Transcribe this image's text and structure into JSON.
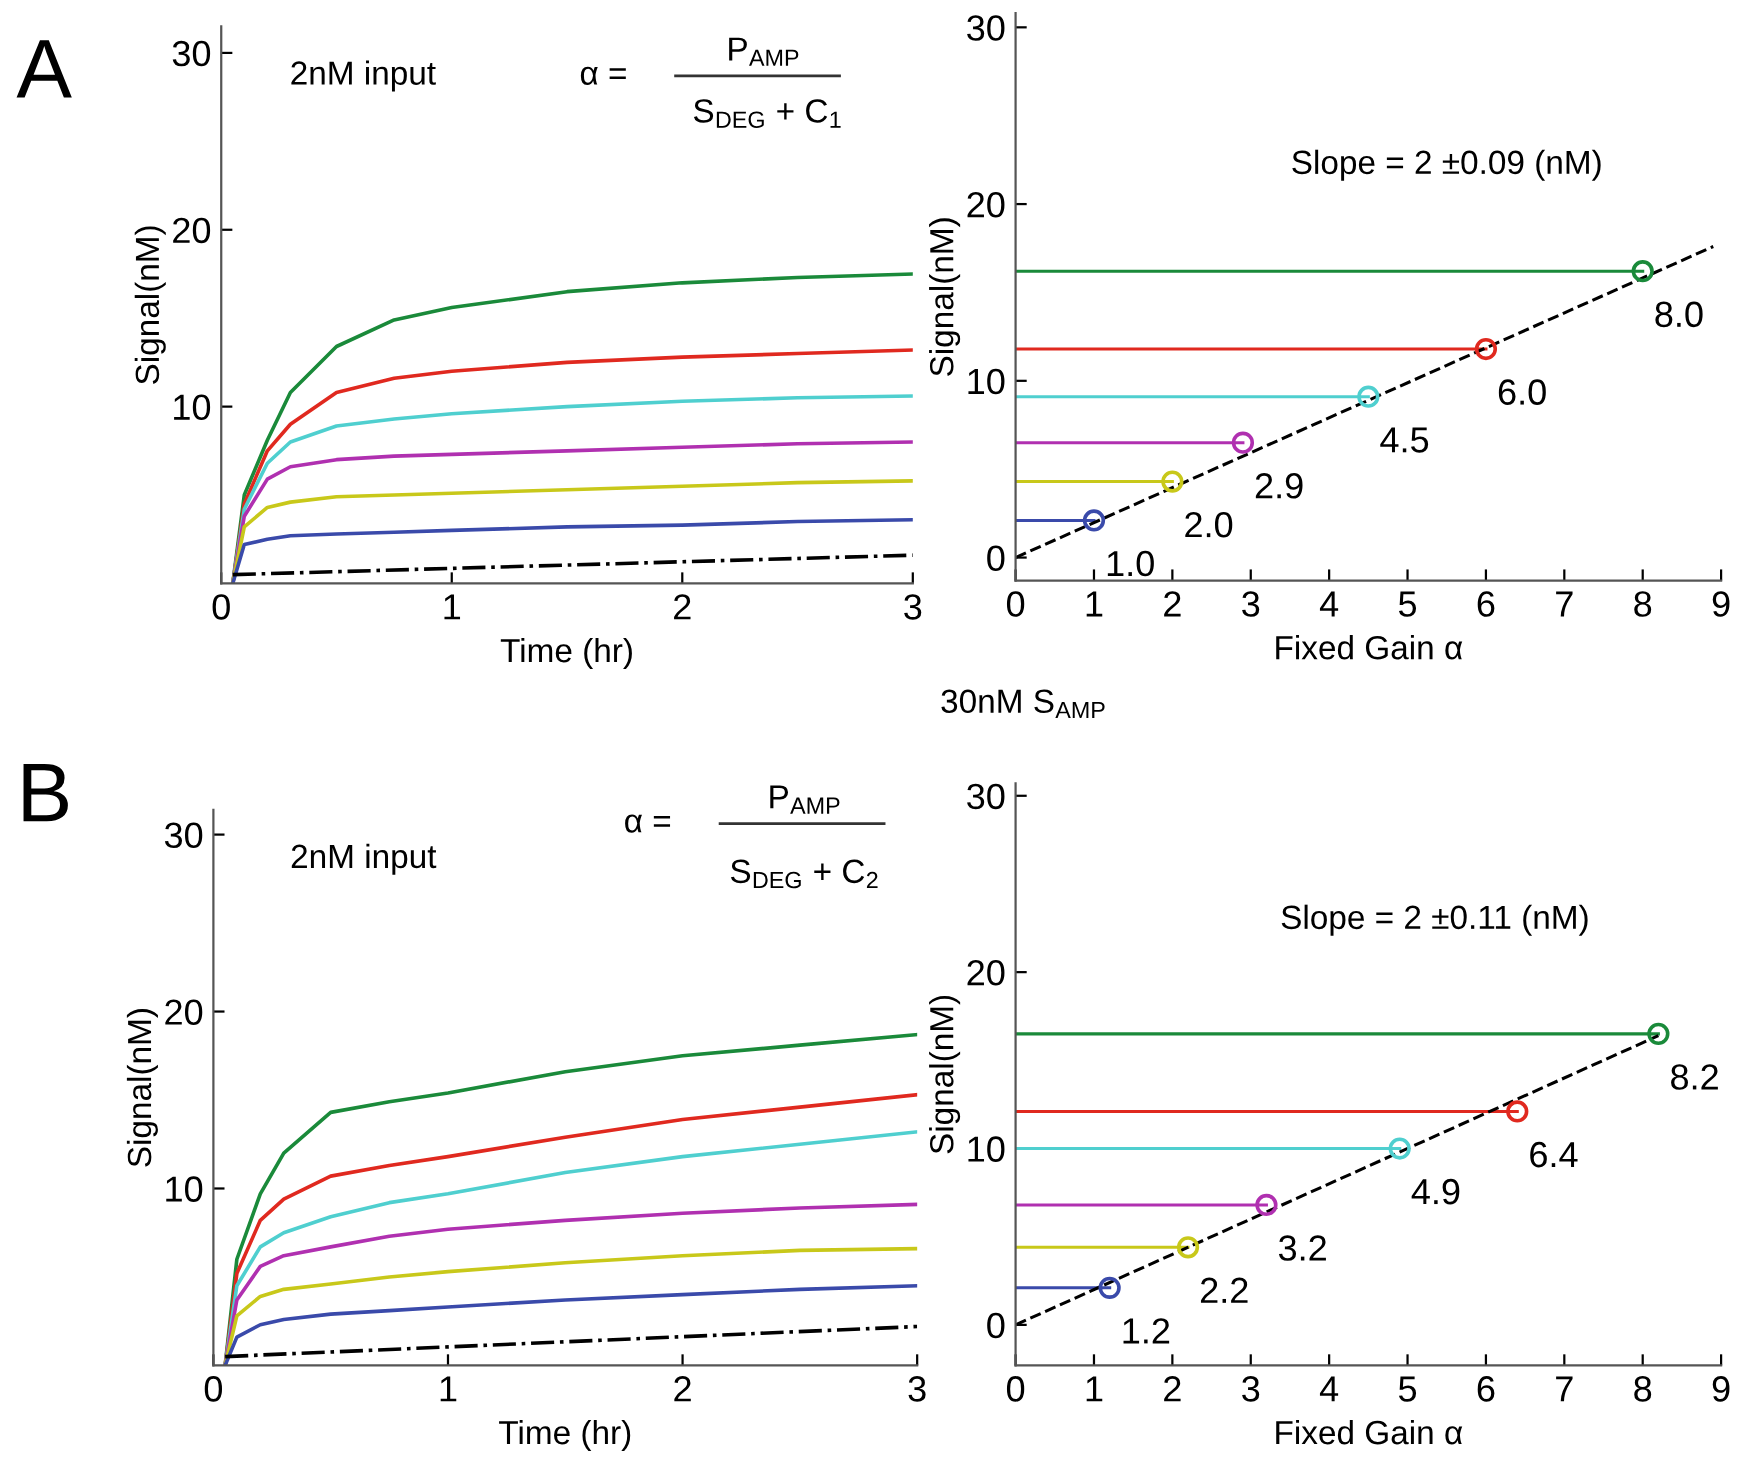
{
  "chart_data": [
    {
      "type": "line",
      "xlabel": "Time (hr)",
      "ylabel": "Signal(nM)",
      "xlim": [
        0,
        3
      ],
      "ylim": [
        0,
        31.5
      ],
      "xticks": [
        0,
        1,
        2,
        3
      ],
      "yticks": [
        10,
        20,
        30
      ],
      "grid": false,
      "legend": false,
      "annotations": [
        "A",
        "2nM input",
        "α =",
        "P$_{AMP}$",
        "S$_{DEG}$ + C$_{1}$"
      ],
      "x": [
        0.05,
        0.1,
        0.2,
        0.3,
        0.5,
        0.75,
        1,
        1.5,
        2,
        2.5,
        3
      ],
      "series": [
        {
          "color": "#1a8a3a",
          "line_style": "solid",
          "values": [
            0,
            5,
            8.1,
            10.8,
            13.4,
            14.9,
            15.6,
            16.5,
            17.0,
            17.3,
            17.5
          ]
        },
        {
          "color": "#e0291f",
          "line_style": "solid",
          "values": [
            0,
            4.5,
            7.5,
            9.0,
            10.8,
            11.6,
            12.0,
            12.5,
            12.8,
            13.0,
            13.2
          ]
        },
        {
          "color": "#4fcfcf",
          "line_style": "solid",
          "values": [
            0,
            4.2,
            6.8,
            8.0,
            8.9,
            9.3,
            9.6,
            10.0,
            10.3,
            10.5,
            10.6
          ]
        },
        {
          "color": "#b030b0",
          "line_style": "solid",
          "values": [
            0,
            3.8,
            5.9,
            6.6,
            7.0,
            7.2,
            7.3,
            7.5,
            7.7,
            7.9,
            8.0
          ]
        },
        {
          "color": "#c8c81a",
          "line_style": "solid",
          "values": [
            0,
            3.2,
            4.3,
            4.6,
            4.9,
            5.0,
            5.1,
            5.3,
            5.5,
            5.7,
            5.8
          ]
        },
        {
          "color": "#3a4aaa",
          "line_style": "solid",
          "values": [
            0,
            2.2,
            2.5,
            2.7,
            2.8,
            2.9,
            3.0,
            3.2,
            3.3,
            3.5,
            3.6
          ]
        },
        {
          "color": "#000000",
          "line_style": "dashdot",
          "x": [
            0.05,
            3
          ],
          "values": [
            0.5,
            1.6
          ]
        }
      ]
    },
    {
      "type": "scatter",
      "xlabel": "Fixed Gain α",
      "ylabel": "Signal(nM)",
      "xlim": [
        0,
        9
      ],
      "ylim": [
        -1.3,
        30.8
      ],
      "xticks": [
        0,
        1,
        2,
        3,
        4,
        5,
        6,
        7,
        8,
        9
      ],
      "yticks": [
        0,
        10,
        20,
        30
      ],
      "grid": false,
      "legend": false,
      "annotations": [
        "Slope = 2 ±0.09 (nM)",
        "30nM S$_{AMP}$",
        {
          "text": "1.0",
          "x": 1.0,
          "y": 2.1
        },
        {
          "text": "2.0",
          "x": 2.0,
          "y": 4.3
        },
        {
          "text": "2.9",
          "x": 2.9,
          "y": 6.5
        },
        {
          "text": "4.5",
          "x": 4.5,
          "y": 9.1
        },
        {
          "text": "6.0",
          "x": 6.0,
          "y": 11.8
        },
        {
          "text": "8.0",
          "x": 8.0,
          "y": 16.2
        }
      ],
      "series": [
        {
          "type": "line",
          "color": "#3a4aaa",
          "line_style": "solid",
          "marker": "none",
          "x": [
            0,
            1.0
          ],
          "values": [
            2.1,
            2.1
          ]
        },
        {
          "type": "line",
          "color": "#c8c81a",
          "line_style": "solid",
          "marker": "none",
          "x": [
            0,
            2.0
          ],
          "values": [
            4.3,
            4.3
          ]
        },
        {
          "type": "line",
          "color": "#b030b0",
          "line_style": "solid",
          "marker": "none",
          "x": [
            0,
            2.9
          ],
          "values": [
            6.5,
            6.5
          ]
        },
        {
          "type": "line",
          "color": "#4fcfcf",
          "line_style": "solid",
          "marker": "none",
          "x": [
            0,
            4.5
          ],
          "values": [
            9.1,
            9.1
          ]
        },
        {
          "type": "line",
          "color": "#e0291f",
          "line_style": "solid",
          "marker": "none",
          "x": [
            0,
            6.0
          ],
          "values": [
            11.8,
            11.8
          ]
        },
        {
          "type": "line",
          "color": "#1a8a3a",
          "line_style": "solid",
          "marker": "none",
          "x": [
            0,
            8.0
          ],
          "values": [
            16.2,
            16.2
          ]
        },
        {
          "color": "#3a4aaa",
          "marker": "circle",
          "x": [
            1.0
          ],
          "values": [
            2.1
          ]
        },
        {
          "color": "#c8c81a",
          "marker": "circle",
          "x": [
            2.0
          ],
          "values": [
            4.3
          ]
        },
        {
          "color": "#b030b0",
          "marker": "circle",
          "x": [
            2.9
          ],
          "values": [
            6.5
          ]
        },
        {
          "color": "#4fcfcf",
          "marker": "circle",
          "x": [
            4.5
          ],
          "values": [
            9.1
          ]
        },
        {
          "color": "#e0291f",
          "marker": "circle",
          "x": [
            6.0
          ],
          "values": [
            11.8
          ]
        },
        {
          "color": "#1a8a3a",
          "marker": "circle",
          "x": [
            8.0
          ],
          "values": [
            16.2
          ]
        },
        {
          "type": "line",
          "color": "#000000",
          "line_style": "dashed",
          "marker": "none",
          "x": [
            0,
            8.9
          ],
          "values": [
            0,
            17.6
          ]
        }
      ]
    },
    {
      "type": "line",
      "xlabel": "Time (hr)",
      "ylabel": "Signal(nM)",
      "xlim": [
        0,
        3
      ],
      "ylim": [
        0,
        31.4
      ],
      "xticks": [
        0,
        1,
        2,
        3
      ],
      "yticks": [
        10,
        20,
        30
      ],
      "grid": false,
      "legend": false,
      "annotations": [
        "B",
        "2nM input",
        "α =",
        "P$_{AMP}$",
        "S$_{DEG}$ + C$_{2}$"
      ],
      "x": [
        0.05,
        0.1,
        0.2,
        0.3,
        0.5,
        0.75,
        1,
        1.5,
        2,
        2.5,
        3
      ],
      "series": [
        {
          "color": "#1a8a3a",
          "line_style": "solid",
          "values": [
            0,
            6,
            9.7,
            12.0,
            14.3,
            14.9,
            15.4,
            16.6,
            17.5,
            18.1,
            18.7
          ]
        },
        {
          "color": "#e0291f",
          "line_style": "solid",
          "values": [
            0,
            5.2,
            8.2,
            9.4,
            10.7,
            11.3,
            11.8,
            12.9,
            13.9,
            14.6,
            15.3
          ]
        },
        {
          "color": "#4fcfcf",
          "line_style": "solid",
          "values": [
            0,
            4.5,
            6.7,
            7.5,
            8.4,
            9.2,
            9.7,
            10.9,
            11.8,
            12.5,
            13.2
          ]
        },
        {
          "color": "#b030b0",
          "line_style": "solid",
          "values": [
            0,
            3.7,
            5.6,
            6.2,
            6.7,
            7.3,
            7.7,
            8.2,
            8.6,
            8.9,
            9.1
          ]
        },
        {
          "color": "#c8c81a",
          "line_style": "solid",
          "values": [
            0,
            2.8,
            3.9,
            4.3,
            4.6,
            5.0,
            5.3,
            5.8,
            6.2,
            6.5,
            6.6
          ]
        },
        {
          "color": "#3a4aaa",
          "line_style": "solid",
          "values": [
            0,
            1.6,
            2.3,
            2.6,
            2.9,
            3.1,
            3.3,
            3.7,
            4.0,
            4.3,
            4.5
          ]
        },
        {
          "color": "#000000",
          "line_style": "dashdot",
          "x": [
            0.05,
            3
          ],
          "values": [
            0.5,
            2.2
          ]
        }
      ]
    },
    {
      "type": "scatter",
      "xlabel": "Fixed Gain α",
      "ylabel": "Signal(nM)",
      "xlim": [
        0,
        9
      ],
      "ylim": [
        -2.3,
        30.7
      ],
      "xticks": [
        0,
        1,
        2,
        3,
        4,
        5,
        6,
        7,
        8,
        9
      ],
      "yticks": [
        0,
        10,
        20,
        30
      ],
      "grid": false,
      "legend": false,
      "annotations": [
        "Slope = 2 ±0.11 (nM)",
        {
          "text": "1.2",
          "x": 1.2,
          "y": 2.1
        },
        {
          "text": "2.2",
          "x": 2.2,
          "y": 4.4
        },
        {
          "text": "3.2",
          "x": 3.2,
          "y": 6.8
        },
        {
          "text": "4.9",
          "x": 4.9,
          "y": 10.0
        },
        {
          "text": "6.4",
          "x": 6.4,
          "y": 12.1
        },
        {
          "text": "8.2",
          "x": 8.2,
          "y": 16.5
        }
      ],
      "series": [
        {
          "type": "line",
          "color": "#3a4aaa",
          "line_style": "solid",
          "marker": "none",
          "x": [
            0,
            1.2
          ],
          "values": [
            2.1,
            2.1
          ]
        },
        {
          "type": "line",
          "color": "#c8c81a",
          "line_style": "solid",
          "marker": "none",
          "x": [
            0,
            2.2
          ],
          "values": [
            4.4,
            4.4
          ]
        },
        {
          "type": "line",
          "color": "#b030b0",
          "line_style": "solid",
          "marker": "none",
          "x": [
            0,
            3.2
          ],
          "values": [
            6.8,
            6.8
          ]
        },
        {
          "type": "line",
          "color": "#4fcfcf",
          "line_style": "solid",
          "marker": "none",
          "x": [
            0,
            4.9
          ],
          "values": [
            10.0,
            10.0
          ]
        },
        {
          "type": "line",
          "color": "#e0291f",
          "line_style": "solid",
          "marker": "none",
          "x": [
            0,
            6.4
          ],
          "values": [
            12.1,
            12.1
          ]
        },
        {
          "type": "line",
          "color": "#1a8a3a",
          "line_style": "solid",
          "marker": "none",
          "x": [
            0,
            8.2
          ],
          "values": [
            16.5,
            16.5
          ]
        },
        {
          "color": "#3a4aaa",
          "marker": "circle",
          "x": [
            1.2
          ],
          "values": [
            2.1
          ]
        },
        {
          "color": "#c8c81a",
          "marker": "circle",
          "x": [
            2.2
          ],
          "values": [
            4.4
          ]
        },
        {
          "color": "#b030b0",
          "marker": "circle",
          "x": [
            3.2
          ],
          "values": [
            6.8
          ]
        },
        {
          "color": "#4fcfcf",
          "marker": "circle",
          "x": [
            4.9
          ],
          "values": [
            10.0
          ]
        },
        {
          "color": "#e0291f",
          "marker": "circle",
          "x": [
            6.4
          ],
          "values": [
            12.1
          ]
        },
        {
          "color": "#1a8a3a",
          "marker": "circle",
          "x": [
            8.2
          ],
          "values": [
            16.5
          ]
        },
        {
          "type": "line",
          "color": "#000000",
          "line_style": "dashed",
          "marker": "none",
          "x": [
            0,
            8.2
          ],
          "values": [
            0,
            16.4
          ]
        }
      ]
    }
  ]
}
